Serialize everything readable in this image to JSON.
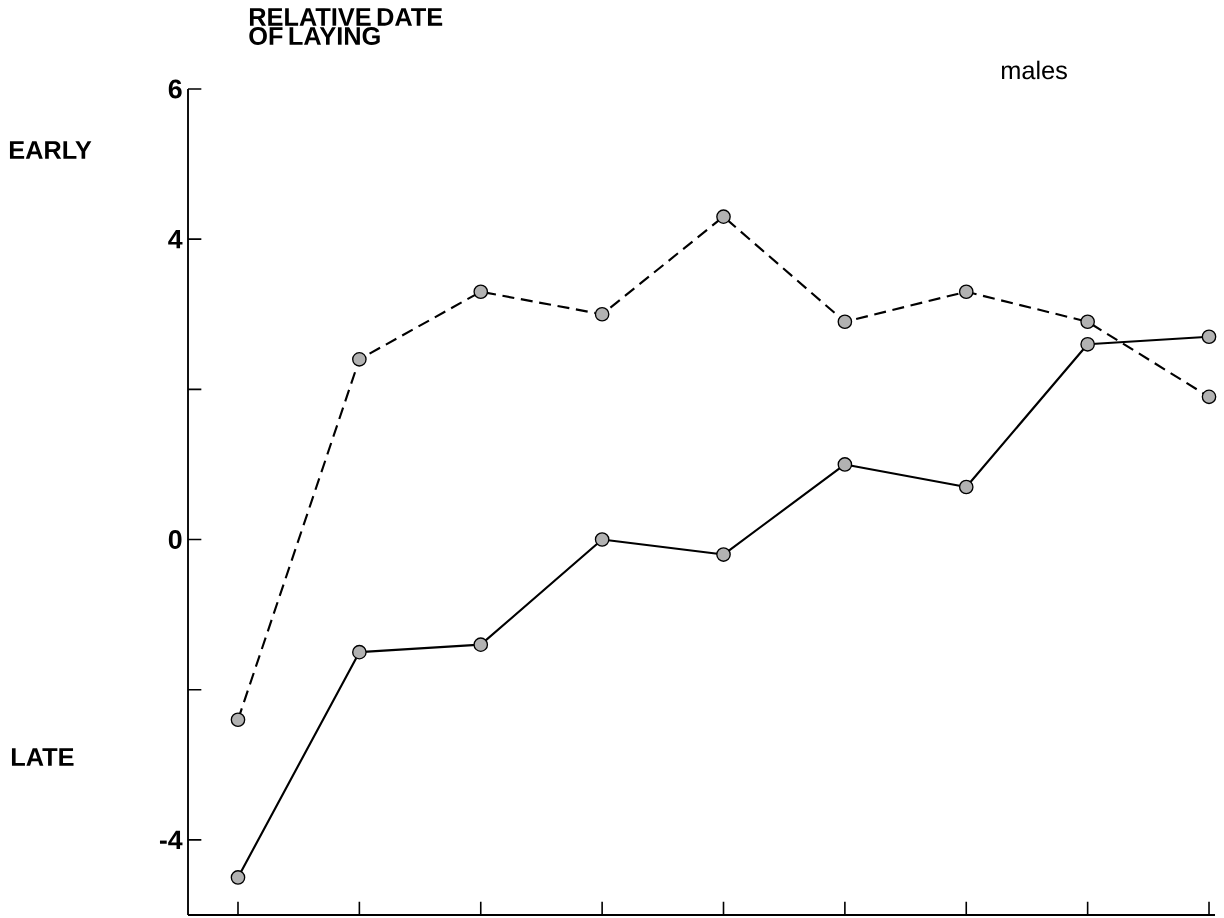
{
  "chart_data": {
    "type": "line",
    "ylabel": "RELATIVE DATE OF LAYING",
    "annotations": [
      "EARLY",
      "LATE",
      "males"
    ],
    "categories": [
      null,
      null,
      null,
      null,
      null,
      null,
      null,
      null,
      null
    ],
    "series": [
      {
        "color": "#000000",
        "line_style": "dashed",
        "values": [
          -2.4,
          2.4,
          3.3,
          3.0,
          4.3,
          2.9,
          3.3,
          2.9,
          1.9
        ]
      },
      {
        "color": "#000000",
        "line_style": "solid",
        "values": [
          -4.5,
          -1.5,
          -1.4,
          0.0,
          -0.2,
          1.0,
          0.7,
          2.6,
          2.7
        ]
      }
    ],
    "ylim": [
      -5,
      6
    ],
    "yticks": [
      6,
      4,
      {
        "value": 2,
        "label": null
      },
      0,
      {
        "value": -2,
        "label": null
      },
      -4
    ],
    "marker": "circle",
    "tick_labels": "y",
    "grid": false
  }
}
